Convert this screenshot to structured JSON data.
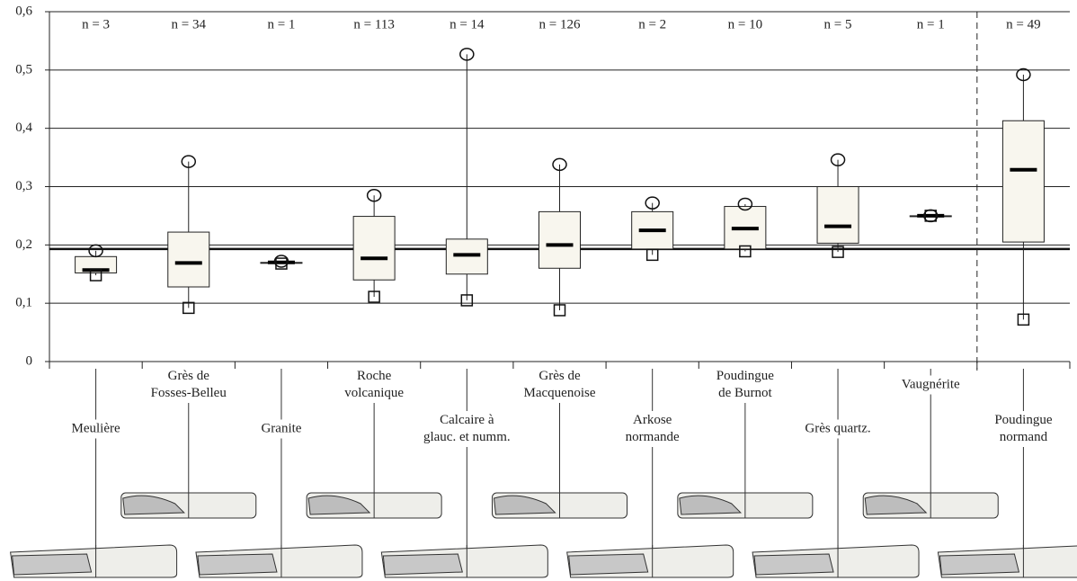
{
  "chart_data": {
    "type": "box",
    "categories": [
      "Meulière",
      "Grès de\nFosses-Belleu",
      "Granite",
      "Roche\nvolcanique",
      "Calcaire à\nglauc. et numm.",
      "Grès de\nMacquenoise",
      "Arkose\nnormande",
      "Poudingue\nde Burnot",
      "Grès quartz.",
      "Vaugnérite",
      "Poudingue\nnormand"
    ],
    "n_labels": [
      "n = 3",
      "n = 34",
      "n = 1",
      "n = 113",
      "n = 14",
      "n = 126",
      "n = 2",
      "n = 10",
      "n = 5",
      "n = 1",
      "n = 49"
    ],
    "boxes": [
      {
        "min": 0.148,
        "q1": 0.152,
        "median": 0.157,
        "q3": 0.18,
        "max": 0.19
      },
      {
        "min": 0.092,
        "q1": 0.128,
        "median": 0.169,
        "q3": 0.222,
        "max": 0.343
      },
      {
        "min": 0.168,
        "q1": 0.17,
        "median": 0.17,
        "q3": 0.17,
        "max": 0.172
      },
      {
        "min": 0.111,
        "q1": 0.14,
        "median": 0.177,
        "q3": 0.249,
        "max": 0.285
      },
      {
        "min": 0.105,
        "q1": 0.15,
        "median": 0.183,
        "q3": 0.21,
        "max": 0.527
      },
      {
        "min": 0.088,
        "q1": 0.16,
        "median": 0.2,
        "q3": 0.257,
        "max": 0.338
      },
      {
        "min": 0.183,
        "q1": 0.193,
        "median": 0.225,
        "q3": 0.257,
        "max": 0.272
      },
      {
        "min": 0.189,
        "q1": 0.193,
        "median": 0.228,
        "q3": 0.266,
        "max": 0.27
      },
      {
        "min": 0.188,
        "q1": 0.203,
        "median": 0.232,
        "q3": 0.3,
        "max": 0.346
      },
      {
        "min": 0.25,
        "q1": 0.25,
        "median": 0.25,
        "q3": 0.25,
        "max": 0.25
      },
      {
        "min": 0.072,
        "q1": 0.205,
        "median": 0.329,
        "q3": 0.413,
        "max": 0.492
      }
    ],
    "reference_line": 0.193,
    "separator_before": 10,
    "ylim": [
      0,
      0.6
    ],
    "yticks": [
      0,
      {
        "value": 0.1,
        "label": "0,1"
      },
      {
        "value": 0.2,
        "label": "0,2"
      },
      {
        "value": 0.3,
        "label": "0,3"
      },
      {
        "value": 0.4,
        "label": "0,4"
      },
      {
        "value": 0.5,
        "label": "0,5"
      },
      {
        "value": 0.6,
        "label": "0,6"
      }
    ],
    "grid": true,
    "box_color": "#f8f6ee"
  }
}
